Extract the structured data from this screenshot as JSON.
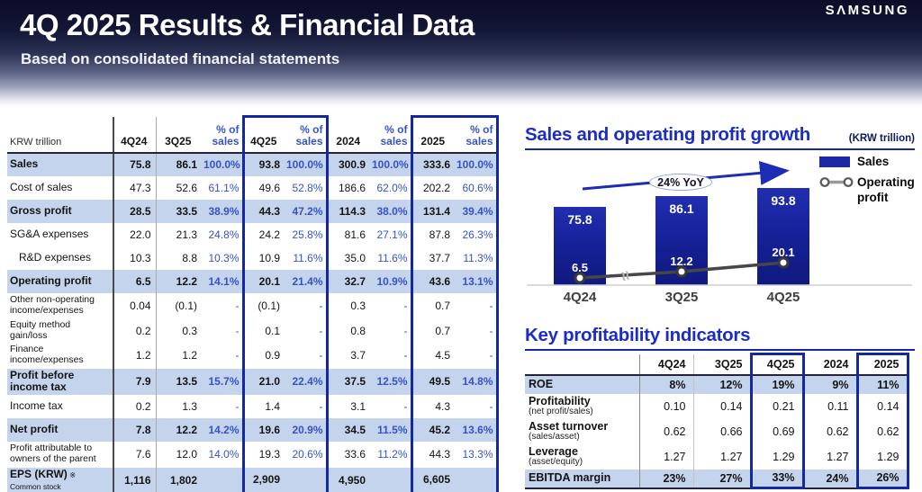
{
  "header": {
    "title": "4Q 2025 Results & Financial Data",
    "subtitle": "Based on consolidated financial statements",
    "logo": "SΛMSUNG"
  },
  "colors": {
    "accent_blue": "#1428a0",
    "row_highlight": "#c4d4ec",
    "percent_blue": "#3553c9",
    "bar_blue": "#1a28a4",
    "section_title_blue": "#1c2cc8",
    "arrow_blue": "#1c2cb4"
  },
  "financial_table": {
    "unit_label": "KRW trillion",
    "columns": [
      "4Q24",
      "3Q25",
      "% of sales",
      "4Q25",
      "% of sales",
      "2024",
      "% of sales",
      "2025",
      "% of sales"
    ],
    "rows": [
      {
        "label": "Sales",
        "highlight": true,
        "values": [
          "75.8",
          "86.1",
          "100.0%",
          "93.8",
          "100.0%",
          "300.9",
          "100.0%",
          "333.6",
          "100.0%"
        ]
      },
      {
        "label": "Cost of sales",
        "values": [
          "47.3",
          "52.6",
          "61.1%",
          "49.6",
          "52.8%",
          "186.6",
          "62.0%",
          "202.2",
          "60.6%"
        ]
      },
      {
        "label": "Gross profit",
        "highlight": true,
        "values": [
          "28.5",
          "33.5",
          "38.9%",
          "44.3",
          "47.2%",
          "114.3",
          "38.0%",
          "131.4",
          "39.4%"
        ]
      },
      {
        "label": "SG&A expenses",
        "values": [
          "22.0",
          "21.3",
          "24.8%",
          "24.2",
          "25.8%",
          "81.6",
          "27.1%",
          "87.8",
          "26.3%"
        ]
      },
      {
        "label": "R&D expenses",
        "indent": true,
        "values": [
          "10.3",
          "8.8",
          "10.3%",
          "10.9",
          "11.6%",
          "35.0",
          "11.6%",
          "37.7",
          "11.3%"
        ]
      },
      {
        "label": "Operating profit",
        "highlight": true,
        "values": [
          "6.5",
          "12.2",
          "14.1%",
          "20.1",
          "21.4%",
          "32.7",
          "10.9%",
          "43.6",
          "13.1%"
        ]
      },
      {
        "label": "Other non-operating income/expenses",
        "small": true,
        "tall": true,
        "values": [
          "0.04",
          "(0.1)",
          "-",
          "(0.1)",
          "-",
          "0.3",
          "-",
          "0.7",
          "-"
        ]
      },
      {
        "label": "Equity method gain/loss",
        "small": true,
        "values": [
          "0.2",
          "0.3",
          "-",
          "0.1",
          "-",
          "0.8",
          "-",
          "0.7",
          "-"
        ]
      },
      {
        "label": "Finance income/expenses",
        "small": true,
        "tall": true,
        "values": [
          "1.2",
          "1.2",
          "-",
          "0.9",
          "-",
          "3.7",
          "-",
          "4.5",
          "-"
        ]
      },
      {
        "label": "Profit before income tax",
        "highlight": true,
        "tall": true,
        "values": [
          "7.9",
          "13.5",
          "15.7%",
          "21.0",
          "22.4%",
          "37.5",
          "12.5%",
          "49.5",
          "14.8%"
        ]
      },
      {
        "label": "Income tax",
        "values": [
          "0.2",
          "1.3",
          "-",
          "1.4",
          "-",
          "3.1",
          "-",
          "4.3",
          "-"
        ]
      },
      {
        "label": "Net profit",
        "highlight": true,
        "values": [
          "7.8",
          "12.2",
          "14.2%",
          "19.6",
          "20.9%",
          "34.5",
          "11.5%",
          "45.2",
          "13.6%"
        ]
      },
      {
        "label": "Profit attributable to owners of the parent",
        "small": true,
        "tall": true,
        "values": [
          "7.6",
          "12.0",
          "14.0%",
          "19.3",
          "20.6%",
          "33.6",
          "11.2%",
          "44.3",
          "13.3%"
        ]
      },
      {
        "label": "EPS (KRW)",
        "note": "※ Common stock",
        "highlight": true,
        "values": [
          "1,116",
          "1,802",
          "",
          "2,909",
          "",
          "4,950",
          "",
          "6,605",
          ""
        ]
      }
    ]
  },
  "chart_data": {
    "type": "bar",
    "title": "Sales and operating profit growth",
    "unit": "(KRW trillion)",
    "annotation": "24% YoY",
    "categories": [
      "4Q24",
      "3Q25",
      "4Q25"
    ],
    "series": [
      {
        "name": "Sales",
        "type": "bar",
        "values": [
          75.8,
          86.1,
          93.8
        ]
      },
      {
        "name": "Operating profit",
        "type": "line",
        "values": [
          6.5,
          12.2,
          20.1
        ]
      }
    ],
    "legend_position": "right",
    "axis_break": true,
    "grid": false
  },
  "indicators_table": {
    "title": "Key profitability indicators",
    "columns": [
      "4Q24",
      "3Q25",
      "4Q25",
      "2024",
      "2025"
    ],
    "rows": [
      {
        "label": "ROE",
        "highlight": true,
        "values": [
          "8%",
          "12%",
          "19%",
          "9%",
          "11%"
        ]
      },
      {
        "label": "Profitability",
        "sub": "(net profit/sales)",
        "tall": true,
        "values": [
          "0.10",
          "0.14",
          "0.21",
          "0.11",
          "0.14"
        ]
      },
      {
        "label": "Asset turnover",
        "sub": "(sales/asset)",
        "tall": true,
        "values": [
          "0.62",
          "0.66",
          "0.69",
          "0.62",
          "0.62"
        ]
      },
      {
        "label": "Leverage",
        "sub": "(asset/equity)",
        "tall": true,
        "values": [
          "1.27",
          "1.27",
          "1.29",
          "1.27",
          "1.29"
        ]
      },
      {
        "label": "EBITDA margin",
        "highlight": true,
        "values": [
          "23%",
          "27%",
          "33%",
          "24%",
          "26%"
        ]
      }
    ]
  }
}
